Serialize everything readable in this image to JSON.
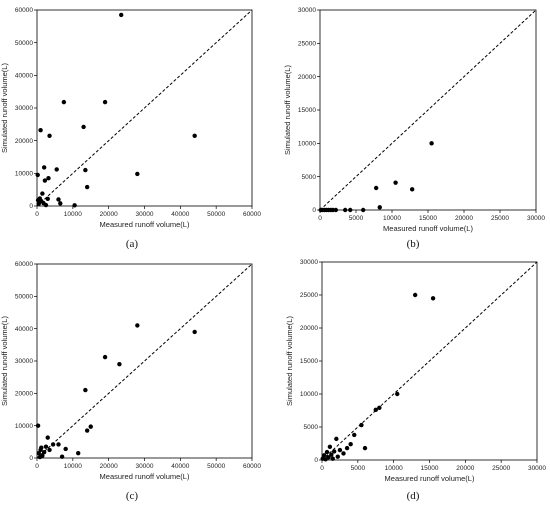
{
  "chart_data": [
    {
      "type": "scatter",
      "label": "(a)",
      "xlabel": "Measured runoff volume(L)",
      "ylabel": "Simulated runoff volume(L)",
      "xlim": [
        0,
        60000
      ],
      "ylim": [
        0,
        60000
      ],
      "xticks": [
        "0",
        "10000",
        "20000",
        "30000",
        "40000",
        "50000",
        "60000"
      ],
      "yticks": [
        "0",
        "10000",
        "20000",
        "30000",
        "40000",
        "50000",
        "60000"
      ],
      "reference_line": "1:1 dashed",
      "points": [
        [
          200,
          9500
        ],
        [
          300,
          1800
        ],
        [
          500,
          700
        ],
        [
          800,
          2300
        ],
        [
          1000,
          23200
        ],
        [
          1200,
          1500
        ],
        [
          1500,
          3800
        ],
        [
          1800,
          900
        ],
        [
          2000,
          11800
        ],
        [
          2200,
          7800
        ],
        [
          2500,
          300
        ],
        [
          3000,
          2200
        ],
        [
          3200,
          8500
        ],
        [
          3500,
          21500
        ],
        [
          5500,
          11200
        ],
        [
          6000,
          2000
        ],
        [
          6500,
          800
        ],
        [
          7500,
          31800
        ],
        [
          10500,
          200
        ],
        [
          13000,
          24200
        ],
        [
          13500,
          11000
        ],
        [
          14000,
          5800
        ],
        [
          19000,
          31800
        ],
        [
          23500,
          58500
        ],
        [
          28000,
          9800
        ],
        [
          44000,
          21500
        ]
      ]
    },
    {
      "type": "scatter",
      "label": "(b)",
      "xlabel": "Measured runoff volume(L)",
      "ylabel": "Simulated runoff volume(L)",
      "xlim": [
        0,
        30000
      ],
      "ylim": [
        0,
        30000
      ],
      "xticks": [
        "0",
        "5000",
        "10000",
        "15000",
        "20000",
        "25000",
        "30000"
      ],
      "yticks": [
        "0",
        "5000",
        "10000",
        "15000",
        "20000",
        "25000",
        "30000"
      ],
      "reference_line": "1:1 dashed",
      "points": [
        [
          100,
          0
        ],
        [
          300,
          0
        ],
        [
          600,
          0
        ],
        [
          900,
          0
        ],
        [
          1200,
          0
        ],
        [
          1500,
          0
        ],
        [
          1800,
          0
        ],
        [
          2200,
          0
        ],
        [
          3500,
          0
        ],
        [
          4200,
          0
        ],
        [
          6000,
          0
        ],
        [
          7800,
          3300
        ],
        [
          8300,
          400
        ],
        [
          10500,
          4100
        ],
        [
          12800,
          3100
        ],
        [
          15500,
          10000
        ]
      ]
    },
    {
      "type": "scatter",
      "label": "(c)",
      "xlabel": "Measured runoff volume(L)",
      "ylabel": "Simulated runoff volume(L)",
      "xlim": [
        0,
        60000
      ],
      "ylim": [
        0,
        60000
      ],
      "xticks": [
        "0",
        "10000",
        "20000",
        "30000",
        "40000",
        "50000",
        "60000"
      ],
      "yticks": [
        "0",
        "10000",
        "20000",
        "30000",
        "40000",
        "50000",
        "60000"
      ],
      "reference_line": "1:1 dashed",
      "points": [
        [
          300,
          10000
        ],
        [
          500,
          1500
        ],
        [
          800,
          300
        ],
        [
          1000,
          2500
        ],
        [
          1200,
          3200
        ],
        [
          1500,
          700
        ],
        [
          2000,
          1800
        ],
        [
          2500,
          3500
        ],
        [
          3000,
          6300
        ],
        [
          3500,
          2500
        ],
        [
          4500,
          4200
        ],
        [
          6000,
          4200
        ],
        [
          7000,
          400
        ],
        [
          8000,
          2800
        ],
        [
          11500,
          1500
        ],
        [
          13500,
          21000
        ],
        [
          14000,
          8500
        ],
        [
          15000,
          9700
        ],
        [
          19000,
          31200
        ],
        [
          23000,
          29000
        ],
        [
          28000,
          41000
        ],
        [
          44000,
          39000
        ]
      ]
    },
    {
      "type": "scatter",
      "label": "(d)",
      "xlabel": "Measured runoff volume(L)",
      "ylabel": "Simulated runoff volume(L)",
      "xlim": [
        0,
        30000
      ],
      "ylim": [
        0,
        30000
      ],
      "xticks": [
        "0",
        "5000",
        "10000",
        "15000",
        "20000",
        "25000",
        "30000"
      ],
      "yticks": [
        "0",
        "5000",
        "10000",
        "15000",
        "20000",
        "25000",
        "30000"
      ],
      "reference_line": "1:1 dashed",
      "points": [
        [
          100,
          200
        ],
        [
          300,
          700
        ],
        [
          500,
          100
        ],
        [
          700,
          1200
        ],
        [
          900,
          400
        ],
        [
          1100,
          2000
        ],
        [
          1300,
          800
        ],
        [
          1500,
          200
        ],
        [
          1700,
          1300
        ],
        [
          2000,
          3200
        ],
        [
          2200,
          500
        ],
        [
          2500,
          1500
        ],
        [
          3000,
          1000
        ],
        [
          3500,
          1800
        ],
        [
          4000,
          2400
        ],
        [
          4500,
          3800
        ],
        [
          5500,
          5300
        ],
        [
          6000,
          1800
        ],
        [
          7500,
          7600
        ],
        [
          8000,
          7900
        ],
        [
          10500,
          10000
        ],
        [
          13000,
          25000
        ],
        [
          15500,
          24500
        ]
      ]
    }
  ]
}
